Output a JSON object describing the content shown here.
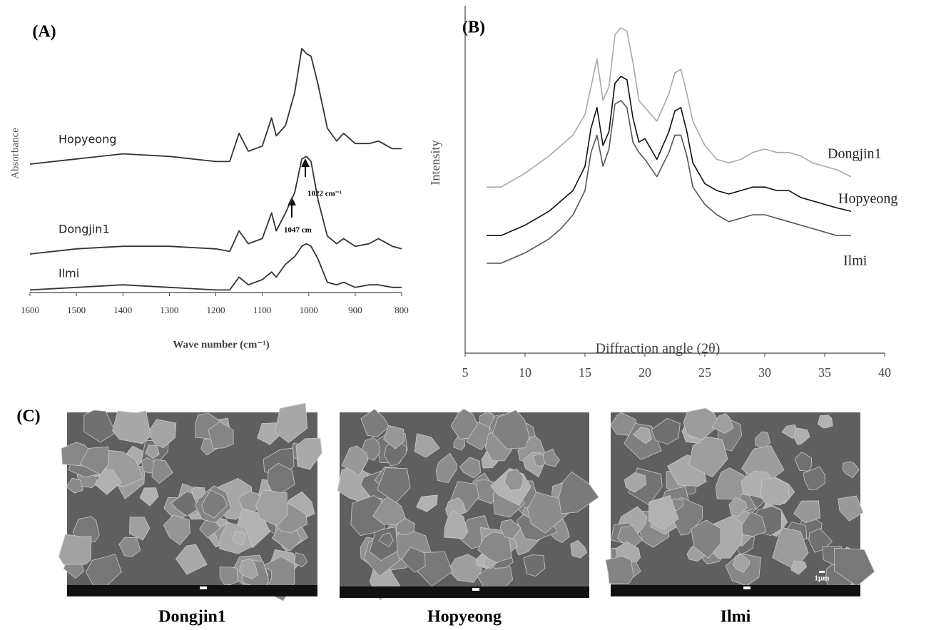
{
  "chart_data": [
    {
      "type": "line",
      "panel_label": "(A)",
      "xlabel": "Wave number (cm⁻¹)",
      "ylabel": "Absorbance",
      "x": [
        1600,
        1500,
        1400,
        1300,
        1200,
        1170,
        1150,
        1130,
        1100,
        1080,
        1070,
        1050,
        1030,
        1015,
        1005,
        995,
        980,
        960,
        940,
        925,
        900,
        870,
        850,
        820,
        800
      ],
      "xlim": [
        1600,
        800
      ],
      "xticks": [
        1600,
        1500,
        1400,
        1300,
        1200,
        1100,
        1000,
        900,
        800
      ],
      "ylim": [
        0,
        1
      ],
      "series": [
        {
          "name": "Hopyeong",
          "color": "#333333",
          "values": [
            0.5,
            0.52,
            0.54,
            0.53,
            0.51,
            0.51,
            0.62,
            0.55,
            0.57,
            0.68,
            0.61,
            0.65,
            0.78,
            0.95,
            0.93,
            0.92,
            0.81,
            0.64,
            0.59,
            0.62,
            0.58,
            0.58,
            0.59,
            0.56,
            0.56
          ]
        },
        {
          "name": "Dongjin1",
          "color": "#333333",
          "values": [
            0.15,
            0.17,
            0.18,
            0.18,
            0.17,
            0.16,
            0.24,
            0.19,
            0.21,
            0.31,
            0.24,
            0.31,
            0.39,
            0.52,
            0.53,
            0.51,
            0.36,
            0.22,
            0.19,
            0.21,
            0.18,
            0.19,
            0.21,
            0.18,
            0.17
          ]
        },
        {
          "name": "Ilmi",
          "color": "#333333",
          "values": [
            0.01,
            0.02,
            0.03,
            0.02,
            0.01,
            0.01,
            0.06,
            0.03,
            0.05,
            0.08,
            0.06,
            0.11,
            0.14,
            0.18,
            0.19,
            0.18,
            0.13,
            0.04,
            0.03,
            0.04,
            0.02,
            0.03,
            0.03,
            0.02,
            0.02
          ]
        }
      ],
      "annotations": [
        "1022 cm⁻¹",
        "1047 cm"
      ]
    },
    {
      "type": "line",
      "panel_label": "(B)",
      "xlabel": "Diffraction angle (2θ)",
      "ylabel": "Intensity",
      "x": [
        6.8,
        8,
        10,
        12,
        13,
        14,
        15,
        15.5,
        16,
        16.5,
        17,
        17.5,
        18,
        18.5,
        19,
        19.5,
        20,
        21,
        22,
        22.5,
        23,
        23.5,
        24,
        25,
        26,
        27,
        28,
        29,
        30,
        31,
        32,
        33,
        34,
        35,
        36,
        37.2
      ],
      "xlim": [
        5,
        40
      ],
      "xticks": [
        5,
        10,
        15,
        20,
        25,
        30,
        35,
        40
      ],
      "ylim": [
        0,
        1
      ],
      "series": [
        {
          "name": "Dongjin1",
          "color": "#a8a8a8",
          "values": [
            0.48,
            0.48,
            0.52,
            0.57,
            0.6,
            0.63,
            0.69,
            0.77,
            0.85,
            0.73,
            0.77,
            0.92,
            0.94,
            0.93,
            0.84,
            0.73,
            0.71,
            0.67,
            0.75,
            0.81,
            0.82,
            0.75,
            0.67,
            0.6,
            0.56,
            0.55,
            0.56,
            0.58,
            0.59,
            0.58,
            0.58,
            0.57,
            0.55,
            0.54,
            0.53,
            0.51
          ]
        },
        {
          "name": "Hopyeong",
          "color": "#111111",
          "values": [
            0.34,
            0.34,
            0.37,
            0.41,
            0.44,
            0.47,
            0.54,
            0.65,
            0.71,
            0.6,
            0.64,
            0.78,
            0.8,
            0.79,
            0.68,
            0.61,
            0.62,
            0.56,
            0.64,
            0.7,
            0.71,
            0.64,
            0.55,
            0.49,
            0.47,
            0.46,
            0.47,
            0.48,
            0.48,
            0.47,
            0.47,
            0.45,
            0.44,
            0.43,
            0.42,
            0.41
          ]
        },
        {
          "name": "Ilmi",
          "color": "#555555",
          "values": [
            0.26,
            0.26,
            0.29,
            0.33,
            0.36,
            0.4,
            0.47,
            0.58,
            0.63,
            0.54,
            0.59,
            0.72,
            0.73,
            0.71,
            0.61,
            0.58,
            0.56,
            0.51,
            0.58,
            0.63,
            0.63,
            0.57,
            0.48,
            0.43,
            0.4,
            0.38,
            0.39,
            0.4,
            0.4,
            0.39,
            0.38,
            0.37,
            0.36,
            0.35,
            0.34,
            0.34
          ]
        }
      ]
    }
  ],
  "panel_c": {
    "label": "(C)",
    "images": [
      {
        "caption": "Dongjin1"
      },
      {
        "caption": "Hopyeong"
      },
      {
        "caption": "Ilmi",
        "scale_bar": "1μm"
      }
    ]
  }
}
